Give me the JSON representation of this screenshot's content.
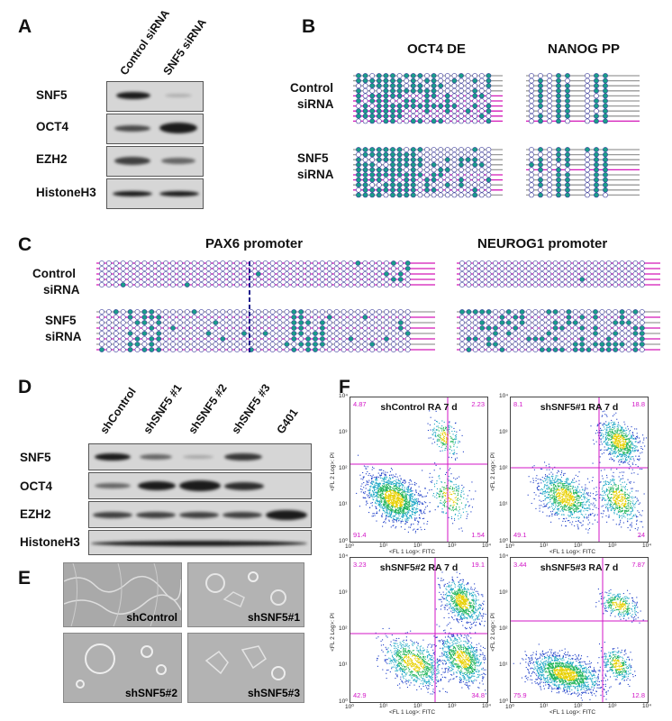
{
  "panelA": {
    "label": "A",
    "columns": [
      "Control siRNA",
      "SNF5 siRNA"
    ],
    "rows": [
      "SNF5",
      "OCT4",
      "EZH2",
      "HistoneH3"
    ]
  },
  "panelB": {
    "label": "B",
    "titles": [
      "OCT4 DE",
      "NANOG PP"
    ],
    "rowLabels": [
      [
        "Control",
        "siRNA"
      ],
      [
        "SNF5",
        "siRNA"
      ]
    ]
  },
  "panelC": {
    "label": "C",
    "titles": [
      "PAX6 promoter",
      "NEUROG1 promoter"
    ],
    "rowLabels": [
      [
        "Control",
        "siRNA"
      ],
      [
        "SNF5",
        "siRNA"
      ]
    ]
  },
  "panelD": {
    "label": "D",
    "columns": [
      "shControl",
      "shSNF5 #1",
      "shSNF5 #2",
      "shSNF5 #3",
      "G401"
    ],
    "rows": [
      "SNF5",
      "OCT4",
      "EZH2",
      "HistoneH3"
    ]
  },
  "panelE": {
    "label": "E",
    "images": [
      "shControl",
      "shSNF5#1",
      "shSNF5#2",
      "shSNF5#3"
    ]
  },
  "panelF": {
    "label": "F",
    "ylabel": "<FL 2 Log>: PI",
    "xlabel": "<FL 1 Log>: FITC",
    "xticks": [
      "10⁰",
      "10¹",
      "10²",
      "10³",
      "10⁴"
    ],
    "yticks": [
      "10⁴",
      "10³",
      "10²",
      "10¹",
      "10⁰"
    ],
    "plots": [
      {
        "title": "shControl RA 7 d",
        "q": [
          "4.87",
          "2.23",
          "91.4",
          "1.54"
        ]
      },
      {
        "title": "shSNF5#1 RA 7 d",
        "q": [
          "8.1",
          "18.8",
          "49.1",
          "24"
        ]
      },
      {
        "title": "shSNF5#2 RA 7 d",
        "q": [
          "3.23",
          "19.1",
          "42.9",
          "34.8"
        ]
      },
      {
        "title": "shSNF5#3 RA 7 d",
        "q": [
          "3.44",
          "7.87",
          "75.9",
          "12.8"
        ]
      }
    ]
  },
  "colors": {
    "methylated": "#1a9e8a",
    "unmethylated": "#ffffff",
    "line": "#d318b8",
    "gray": "#9a9a9a",
    "quad": "#d316c7",
    "cpgEdge": "#3a3a9a",
    "pax6Line": "#1c1c8c"
  }
}
